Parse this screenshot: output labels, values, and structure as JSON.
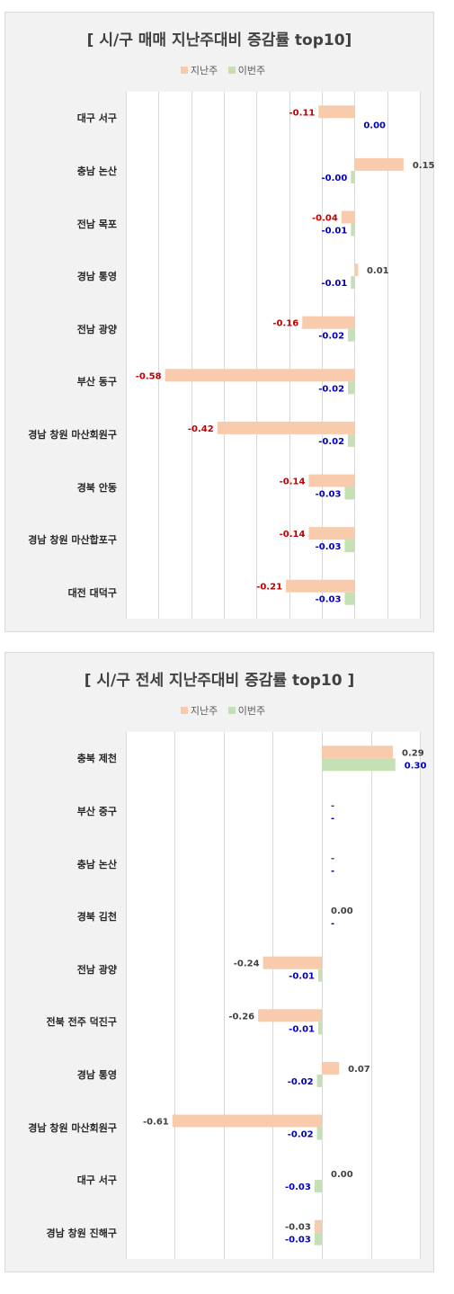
{
  "legend": {
    "prev_label": "지난주",
    "curr_label": "이번주"
  },
  "colors": {
    "prev": "#f8cbad",
    "curr": "#c5e0b4",
    "neg_label": "#c00000",
    "curr_label": "#0000c0",
    "pos_label": "#404040",
    "grid": "#d9d9d9"
  },
  "chart_data": [
    {
      "type": "bar",
      "orientation": "horizontal",
      "title": "[ 시/구 매매 지난주대비 증감률 top10]",
      "categories": [
        "대구 서구",
        "충남 논산",
        "전남 목포",
        "경남 통영",
        "전남 광양",
        "부산 동구",
        "경남 창원 마산회원구",
        "경북 안동",
        "경남 창원 마산합포구",
        "대전 대덕구"
      ],
      "series": [
        {
          "name": "지난주",
          "values": [
            -0.11,
            0.15,
            -0.04,
            0.01,
            -0.16,
            -0.58,
            -0.42,
            -0.14,
            -0.14,
            -0.21
          ],
          "labels": [
            "-0.11",
            "0.15",
            "-0.04",
            "0.01",
            "-0.16",
            "-0.58",
            "-0.42",
            "-0.14",
            "-0.14",
            "-0.21"
          ]
        },
        {
          "name": "이번주",
          "values": [
            0.0,
            -0.004,
            -0.01,
            -0.01,
            -0.02,
            -0.02,
            -0.02,
            -0.03,
            -0.03,
            -0.03
          ],
          "labels": [
            "0.00",
            "-0.00",
            "-0.01",
            "-0.01",
            "-0.02",
            "-0.02",
            "-0.02",
            "-0.03",
            "-0.03",
            "-0.03"
          ]
        }
      ],
      "xlim": [
        -0.7,
        0.2
      ],
      "grid": true
    },
    {
      "type": "bar",
      "orientation": "horizontal",
      "title": "[ 시/구 전세 지난주대비 증감률 top10 ]",
      "categories": [
        "충북 제천",
        "부산 중구",
        "충남 논산",
        "경북 김천",
        "전남 광양",
        "전북 전주 덕진구",
        "경남 통영",
        "경남 창원 마산회원구",
        "대구 서구",
        "경남 창원 진해구"
      ],
      "series": [
        {
          "name": "지난주",
          "values": [
            0.29,
            null,
            null,
            0.0,
            -0.24,
            -0.26,
            0.07,
            -0.61,
            0.0,
            -0.03
          ],
          "labels": [
            "0.29",
            "-",
            "-",
            "0.00",
            "-0.24",
            "-0.26",
            "0.07",
            "-0.61",
            "0.00",
            "-0.03"
          ]
        },
        {
          "name": "이번주",
          "values": [
            0.3,
            null,
            null,
            null,
            -0.01,
            -0.01,
            -0.02,
            -0.02,
            -0.03,
            -0.03
          ],
          "labels": [
            "0.30",
            "-",
            "-",
            "-",
            "-0.01",
            "-0.01",
            "-0.02",
            "-0.02",
            "-0.03",
            "-0.03"
          ]
        }
      ],
      "xlim": [
        -0.8,
        0.4
      ],
      "grid": true
    }
  ]
}
